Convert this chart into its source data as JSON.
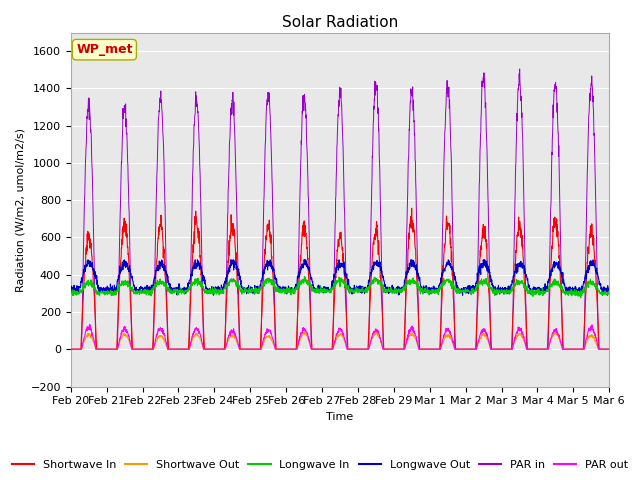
{
  "title": "Solar Radiation",
  "xlabel": "Time",
  "ylabel": "Radiation (W/m2, umol/m2/s)",
  "ylim": [
    -200,
    1700
  ],
  "yticks": [
    -200,
    0,
    200,
    400,
    600,
    800,
    1000,
    1200,
    1400,
    1600
  ],
  "date_labels": [
    "Feb 20",
    "Feb 21",
    "Feb 22",
    "Feb 23",
    "Feb 24",
    "Feb 25",
    "Feb 26",
    "Feb 27",
    "Feb 28",
    "Feb 29",
    "Mar 1",
    "Mar 2",
    "Mar 3",
    "Mar 4",
    "Mar 5",
    "Mar 6"
  ],
  "annotation_text": "WP_met",
  "annotation_color": "#cc0000",
  "annotation_bg": "#ffffcc",
  "annotation_edge": "#aaaa00",
  "colors": {
    "shortwave_in": "#ff0000",
    "shortwave_out": "#ff9900",
    "longwave_in": "#00cc00",
    "longwave_out": "#0000cc",
    "par_in": "#9900cc",
    "par_out": "#ff00ff"
  },
  "legend_labels": [
    "Shortwave In",
    "Shortwave Out",
    "Longwave In",
    "Longwave Out",
    "PAR in",
    "PAR out"
  ],
  "n_days": 15,
  "points_per_day": 144,
  "bg_color": "#e8e8e8",
  "grid_color": "#ffffff",
  "title_fontsize": 11,
  "label_fontsize": 8,
  "tick_fontsize": 8,
  "legend_fontsize": 8
}
